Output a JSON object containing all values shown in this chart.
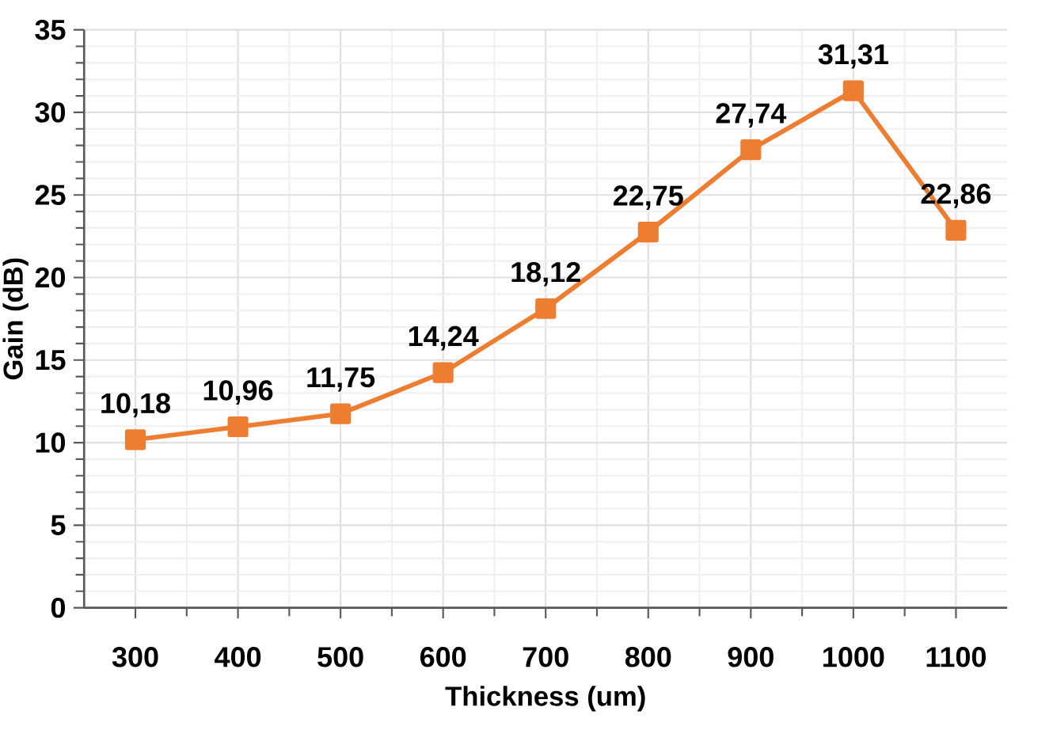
{
  "chart_data": {
    "type": "line",
    "xlabel": "Thickness (um)",
    "ylabel": "Gain (dB)",
    "x": [
      300,
      400,
      500,
      600,
      700,
      800,
      900,
      1000,
      1100
    ],
    "series": [
      {
        "color": "#ed7d31",
        "values": [
          10.18,
          10.96,
          11.75,
          14.24,
          18.12,
          22.75,
          27.74,
          31.31,
          22.86
        ],
        "value_labels": [
          "10,18",
          "10,96",
          "11,75",
          "14,24",
          "18,12",
          "22,75",
          "27,74",
          "31,31",
          "22,86"
        ]
      }
    ],
    "xlim": [
      250,
      1150
    ],
    "xticks": [
      300,
      400,
      500,
      600,
      700,
      800,
      900,
      1000,
      1100
    ],
    "ylim": [
      0,
      35
    ],
    "yticks": [
      0,
      5,
      10,
      15,
      20,
      25,
      30,
      35
    ],
    "grid": true,
    "marker": "square",
    "line_style": "solid"
  }
}
